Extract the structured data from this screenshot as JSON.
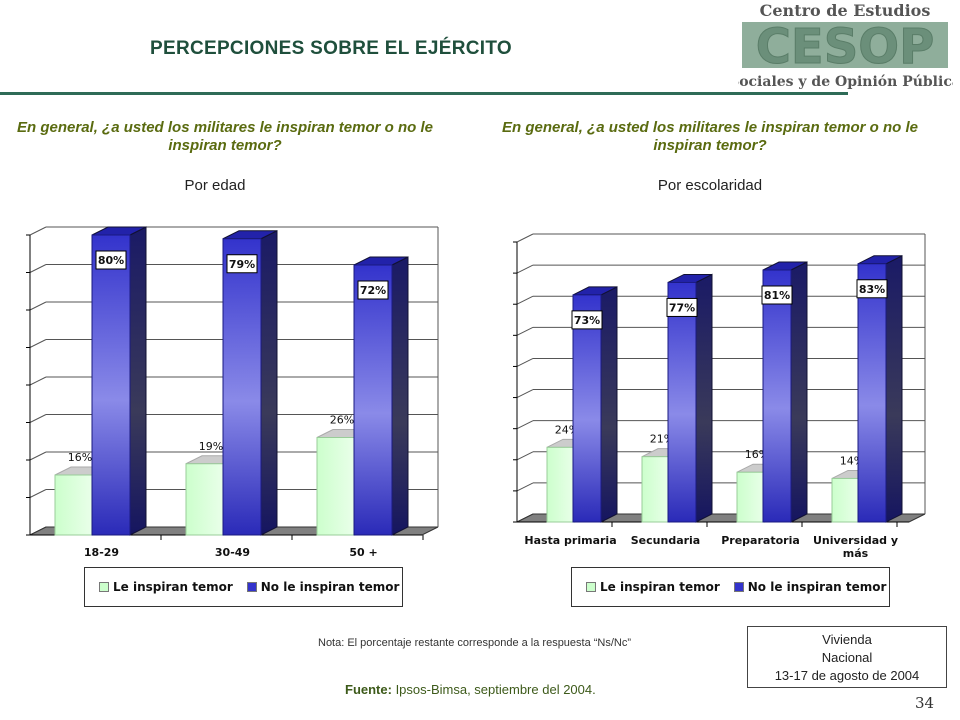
{
  "header": {
    "title": "PERCEPCIONES SOBRE EL EJÉRCITO",
    "logo_top": "Centro de Estudios",
    "logo_mark": "CESOP",
    "logo_bottom": "Sociales y de Opinión Pública"
  },
  "colors": {
    "light_series": "#ccffcc",
    "dark_series": "#3333cc",
    "title": "#1f4f3c",
    "question": "#5a6b10"
  },
  "chart_data": [
    {
      "type": "bar",
      "title": "En general, ¿a usted los militares le inspiran temor o no le inspiran temor?",
      "subtitle": "Por edad",
      "categories": [
        "18-29",
        "30-49",
        "50 +"
      ],
      "series": [
        {
          "name": "Le inspiran temor",
          "values": [
            16,
            19,
            26
          ]
        },
        {
          "name": "No le inspiran temor",
          "values": [
            80,
            79,
            72
          ]
        }
      ],
      "value_labels": {
        "Le inspiran temor": [
          "16%",
          "19%",
          "26%"
        ],
        "No le inspiran temor": [
          "80%",
          "79%",
          "72%"
        ]
      },
      "ylim": [
        0,
        80
      ],
      "grid": true,
      "legend": "bottom"
    },
    {
      "type": "bar",
      "title": "En general, ¿a usted los militares le inspiran temor o no le inspiran temor?",
      "subtitle": "Por escolaridad",
      "categories": [
        "Hasta primaria",
        "Secundaria",
        "Preparatoria",
        "Universidad y más"
      ],
      "series": [
        {
          "name": "Le inspiran temor",
          "values": [
            24,
            21,
            16,
            14
          ]
        },
        {
          "name": "No le inspiran temor",
          "values": [
            73,
            77,
            81,
            83
          ]
        }
      ],
      "value_labels": {
        "Le inspiran temor": [
          "24%",
          "21%",
          "16%",
          "14%"
        ],
        "No le inspiran temor": [
          "73%",
          "77%",
          "81%",
          "83%"
        ]
      },
      "ylim": [
        0,
        90
      ],
      "grid": true,
      "legend": "bottom"
    }
  ],
  "footer": {
    "note": "Nota: El porcentaje restante corresponde a la respuesta “Ns/Nc”",
    "source_label": "Fuente:",
    "source_text": " Ipsos-Bimsa, septiembre del 2004.",
    "info_line1": "Vivienda",
    "info_line2": "Nacional",
    "info_line3": "13-17 de agosto de 2004",
    "page_number": "34"
  }
}
